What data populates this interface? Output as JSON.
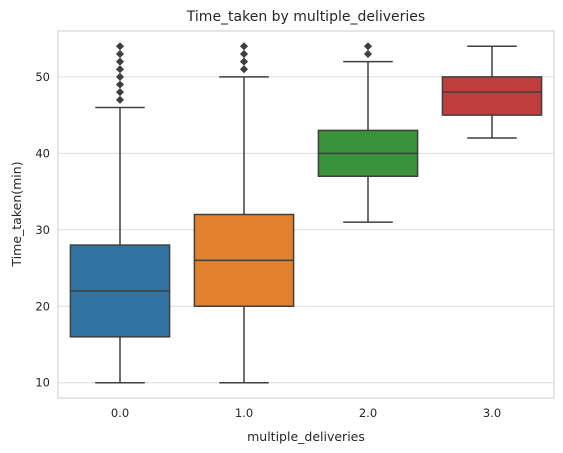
{
  "chart_data": {
    "type": "box",
    "title": "Time_taken by multiple_deliveries",
    "xlabel": "multiple_deliveries",
    "ylabel": "Time_taken(min)",
    "ylim": [
      8,
      56
    ],
    "yticks": [
      10,
      20,
      30,
      40,
      50
    ],
    "grid": "horizontal",
    "categories": [
      "0.0",
      "1.0",
      "2.0",
      "3.0"
    ],
    "boxes": [
      {
        "category": "0.0",
        "color": "#3274a1",
        "whisker_low": 10,
        "q1": 16,
        "median": 22,
        "q3": 28,
        "whisker_high": 46,
        "outliers": [
          47,
          48,
          49,
          50,
          51,
          52,
          53,
          54
        ]
      },
      {
        "category": "1.0",
        "color": "#e1812c",
        "whisker_low": 10,
        "q1": 20,
        "median": 26,
        "q3": 32,
        "whisker_high": 50,
        "outliers": [
          51,
          52,
          53,
          54
        ]
      },
      {
        "category": "2.0",
        "color": "#3a923a",
        "whisker_low": 31,
        "q1": 37,
        "median": 40,
        "q3": 43,
        "whisker_high": 52,
        "outliers": [
          53,
          54
        ]
      },
      {
        "category": "3.0",
        "color": "#c03d3e",
        "whisker_low": 42,
        "q1": 45,
        "median": 48,
        "q3": 50,
        "whisker_high": 54,
        "outliers": []
      }
    ]
  }
}
